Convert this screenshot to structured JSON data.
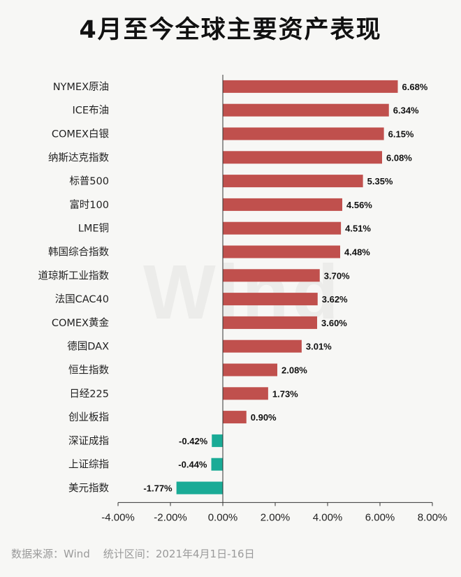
{
  "title": "4月至今全球主要资产表现",
  "watermark": "Wind",
  "footer": {
    "source_label": "数据来源：",
    "source": "Wind",
    "period_label": "统计区间：",
    "period": "2021年4月1日-16日"
  },
  "colors": {
    "positive": "#c0504d",
    "negative": "#1aab96",
    "axis": "#333333"
  },
  "chart_data": {
    "type": "bar",
    "orientation": "horizontal",
    "categories": [
      "NYMEX原油",
      "ICE布油",
      "COMEX白银",
      "纳斯达克指数",
      "标普500",
      "富时100",
      "LME铜",
      "韩国综合指数",
      "道琼斯工业指数",
      "法国CAC40",
      "COMEX黄金",
      "德国DAX",
      "恒生指数",
      "日经225",
      "创业板指",
      "深证成指",
      "上证综指",
      "美元指数"
    ],
    "values": [
      6.68,
      6.34,
      6.15,
      6.08,
      5.35,
      4.56,
      4.51,
      4.48,
      3.7,
      3.62,
      3.6,
      3.01,
      2.08,
      1.73,
      0.9,
      -0.42,
      -0.44,
      -1.77
    ],
    "data_labels": [
      "6.68%",
      "6.34%",
      "6.15%",
      "6.08%",
      "5.35%",
      "4.56%",
      "4.51%",
      "4.48%",
      "3.70%",
      "3.62%",
      "3.60%",
      "3.01%",
      "2.08%",
      "1.73%",
      "0.90%",
      "-0.42%",
      "-0.44%",
      "-1.77%"
    ],
    "xlim": [
      -4,
      8
    ],
    "xticks": [
      -4,
      -2,
      0,
      2,
      4,
      6,
      8
    ],
    "xtick_labels": [
      "-4.00%",
      "-2.00%",
      "0.00%",
      "2.00%",
      "4.00%",
      "6.00%",
      "8.00%"
    ],
    "grid": false,
    "legend": "none"
  }
}
